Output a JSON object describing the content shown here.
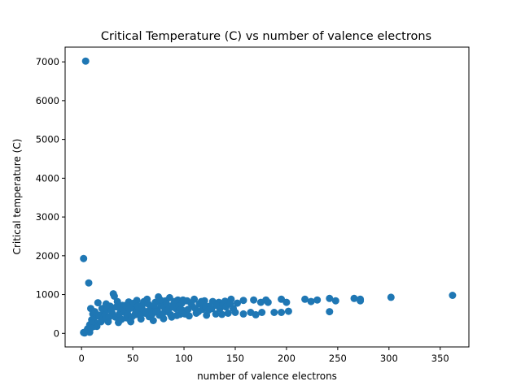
{
  "chart_data": {
    "type": "scatter",
    "title": "Critical Temperature (C) vs number of valence electrons",
    "xlabel": "number of valence electrons",
    "ylabel": "Critical temperature (C)",
    "xlim": [
      -16,
      378
    ],
    "ylim": [
      -350,
      7380
    ],
    "xticks": [
      0,
      50,
      100,
      150,
      200,
      250,
      300,
      350
    ],
    "yticks": [
      0,
      1000,
      2000,
      3000,
      4000,
      5000,
      6000,
      7000
    ],
    "marker_color": "#1f77b4",
    "grid": false,
    "series": [
      {
        "points": [
          [
            4,
            7020
          ],
          [
            2,
            1930
          ],
          [
            7,
            1300
          ],
          [
            2,
            20
          ],
          [
            5,
            60
          ],
          [
            3,
            10
          ],
          [
            8,
            30
          ],
          [
            6,
            120
          ],
          [
            9,
            640
          ],
          [
            11,
            500
          ],
          [
            12,
            380
          ],
          [
            14,
            260
          ],
          [
            16,
            790
          ],
          [
            15,
            180
          ],
          [
            18,
            430
          ],
          [
            20,
            640
          ],
          [
            22,
            550
          ],
          [
            24,
            760
          ],
          [
            26,
            300
          ],
          [
            28,
            700
          ],
          [
            30,
            520
          ],
          [
            31,
            1020
          ],
          [
            32,
            960
          ],
          [
            33,
            420
          ],
          [
            35,
            820
          ],
          [
            36,
            280
          ],
          [
            38,
            620
          ],
          [
            40,
            720
          ],
          [
            42,
            540
          ],
          [
            44,
            400
          ],
          [
            46,
            810
          ],
          [
            48,
            300
          ],
          [
            50,
            700
          ],
          [
            52,
            480
          ],
          [
            54,
            850
          ],
          [
            56,
            600
          ],
          [
            58,
            370
          ],
          [
            60,
            760
          ],
          [
            62,
            520
          ],
          [
            64,
            880
          ],
          [
            66,
            430
          ],
          [
            68,
            690
          ],
          [
            70,
            330
          ],
          [
            72,
            800
          ],
          [
            74,
            610
          ],
          [
            75,
            940
          ],
          [
            76,
            470
          ],
          [
            78,
            720
          ],
          [
            80,
            380
          ],
          [
            82,
            840
          ],
          [
            84,
            560
          ],
          [
            86,
            920
          ],
          [
            88,
            420
          ],
          [
            90,
            760
          ],
          [
            92,
            640
          ],
          [
            94,
            860
          ],
          [
            96,
            490
          ],
          [
            98,
            780
          ],
          [
            100,
            580
          ],
          [
            103,
            840
          ],
          [
            105,
            450
          ],
          [
            108,
            700
          ],
          [
            110,
            880
          ],
          [
            112,
            520
          ],
          [
            115,
            760
          ],
          [
            118,
            620
          ],
          [
            120,
            840
          ],
          [
            122,
            470
          ],
          [
            125,
            700
          ],
          [
            128,
            820
          ],
          [
            131,
            500
          ],
          [
            134,
            800
          ],
          [
            137,
            490
          ],
          [
            140,
            830
          ],
          [
            143,
            520
          ],
          [
            146,
            880
          ],
          [
            150,
            540
          ],
          [
            152,
            780
          ],
          [
            158,
            850
          ],
          [
            158,
            500
          ],
          [
            165,
            540
          ],
          [
            168,
            860
          ],
          [
            170,
            480
          ],
          [
            175,
            800
          ],
          [
            176,
            540
          ],
          [
            180,
            860
          ],
          [
            182,
            800
          ],
          [
            188,
            540
          ],
          [
            195,
            880
          ],
          [
            195,
            540
          ],
          [
            200,
            800
          ],
          [
            202,
            570
          ],
          [
            218,
            880
          ],
          [
            224,
            820
          ],
          [
            230,
            860
          ],
          [
            242,
            900
          ],
          [
            242,
            560
          ],
          [
            248,
            840
          ],
          [
            266,
            900
          ],
          [
            272,
            840
          ],
          [
            272,
            880
          ],
          [
            302,
            930
          ],
          [
            362,
            980
          ],
          [
            10,
            350
          ],
          [
            13,
            560
          ],
          [
            17,
            470
          ],
          [
            19,
            300
          ],
          [
            21,
            380
          ],
          [
            23,
            480
          ],
          [
            25,
            620
          ],
          [
            27,
            420
          ],
          [
            29,
            580
          ],
          [
            34,
            680
          ],
          [
            37,
            500
          ],
          [
            39,
            360
          ],
          [
            41,
            620
          ],
          [
            43,
            720
          ],
          [
            45,
            500
          ],
          [
            47,
            640
          ],
          [
            49,
            420
          ],
          [
            51,
            780
          ],
          [
            53,
            560
          ],
          [
            55,
            700
          ],
          [
            57,
            460
          ],
          [
            59,
            640
          ],
          [
            61,
            820
          ],
          [
            63,
            560
          ],
          [
            65,
            760
          ],
          [
            67,
            620
          ],
          [
            69,
            500
          ],
          [
            71,
            720
          ],
          [
            73,
            560
          ],
          [
            77,
            860
          ],
          [
            79,
            500
          ],
          [
            81,
            660
          ],
          [
            83,
            760
          ],
          [
            85,
            620
          ],
          [
            87,
            480
          ],
          [
            89,
            680
          ],
          [
            91,
            820
          ],
          [
            93,
            460
          ],
          [
            95,
            700
          ],
          [
            97,
            620
          ],
          [
            99,
            860
          ],
          [
            101,
            500
          ],
          [
            104,
            620
          ],
          [
            107,
            780
          ],
          [
            111,
            640
          ],
          [
            114,
            560
          ],
          [
            117,
            820
          ],
          [
            121,
            700
          ],
          [
            124,
            600
          ],
          [
            127,
            640
          ],
          [
            132,
            720
          ],
          [
            135,
            640
          ],
          [
            138,
            740
          ],
          [
            141,
            680
          ],
          [
            145,
            760
          ],
          [
            148,
            640
          ],
          [
            12,
            180
          ],
          [
            8,
            220
          ],
          [
            10,
            260
          ],
          [
            9,
            140
          ]
        ]
      }
    ]
  }
}
